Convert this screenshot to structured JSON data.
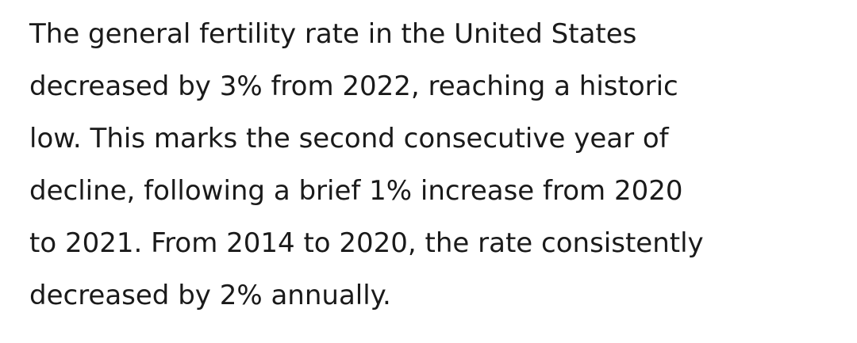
{
  "article": {
    "lines": [
      "The general fertility rate in the United States",
      "decreased by 3% from 2022, reaching a historic",
      "low. This marks the second consecutive year of",
      "decline, following a brief 1% increase from 2020",
      "to 2021. From 2014 to 2020, the rate consistently",
      "decreased by 2% annually."
    ]
  }
}
